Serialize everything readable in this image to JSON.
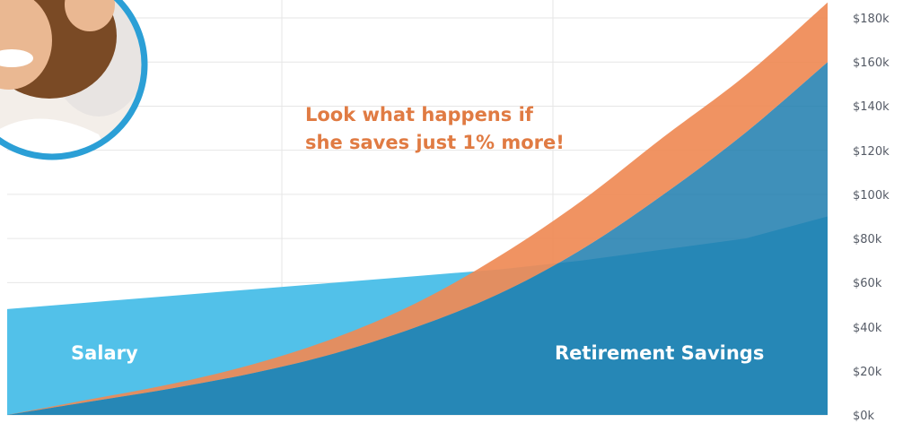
{
  "annotation": {
    "line1": "Look what happens if",
    "line2": "she saves just 1% more!"
  },
  "colors": {
    "salary": "#52c1e9",
    "retirement_savings": "#1f7eae",
    "savings_plus_1pct": "#ef8a55",
    "annotation_text": "#e07b43",
    "photo_ring": "#2b9fd6",
    "grid": "#e6e6e6",
    "tick_text": "#555b66"
  },
  "chart_data": {
    "type": "area",
    "title": "",
    "xlabel": "",
    "ylabel": "",
    "x": [
      0,
      1,
      2,
      3,
      4,
      5,
      6,
      7,
      8,
      9,
      10
    ],
    "ylim": [
      0,
      190
    ],
    "yticks": [
      "$0k",
      "$20k",
      "$40k",
      "$60k",
      "$80k",
      "$100k",
      "$120k",
      "$140k",
      "$160k",
      "$180k"
    ],
    "ytick_values": [
      0,
      20,
      40,
      60,
      80,
      100,
      120,
      140,
      160,
      180
    ],
    "grid": true,
    "series": [
      {
        "name": "Salary",
        "values": [
          48,
          51,
          54,
          57,
          60,
          63,
          66,
          70,
          75,
          80,
          90
        ]
      },
      {
        "name": "",
        "values": [
          0,
          6,
          12,
          19,
          28,
          40,
          55,
          75,
          100,
          128,
          160
        ]
      },
      {
        "name": "Retirement Savings",
        "values": [
          0,
          6,
          12,
          19,
          28,
          40,
          55,
          75,
          100,
          128,
          160
        ]
      },
      {
        "name": "",
        "values": [
          0,
          7,
          14,
          23,
          35,
          51,
          72,
          97,
          126,
          154,
          187
        ]
      }
    ],
    "annotations": [
      "Look what happens if she saves just 1% more!"
    ]
  }
}
